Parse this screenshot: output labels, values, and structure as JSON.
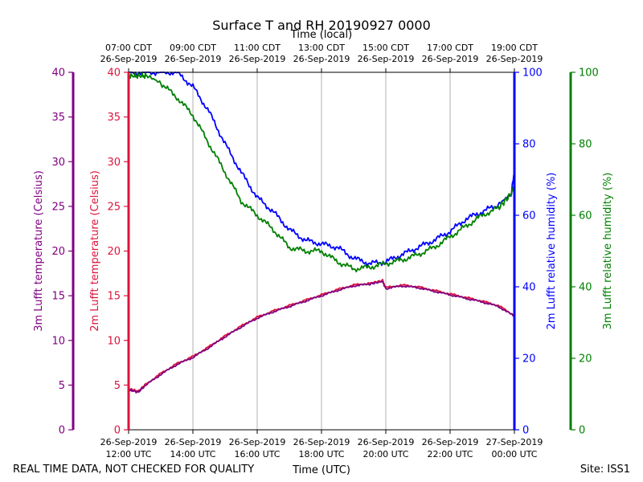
{
  "chart_data": {
    "type": "line",
    "title": "Surface T and RH 20190927 0000",
    "xlabel_bottom": "Time (UTC)",
    "xlabel_top": "Time (local)",
    "x_ticks_bottom": [
      [
        "26-Sep-2019",
        "12:00 UTC"
      ],
      [
        "26-Sep-2019",
        "14:00 UTC"
      ],
      [
        "26-Sep-2019",
        "16:00 UTC"
      ],
      [
        "26-Sep-2019",
        "18:00 UTC"
      ],
      [
        "26-Sep-2019",
        "20:00 UTC"
      ],
      [
        "26-Sep-2019",
        "22:00 UTC"
      ],
      [
        "27-Sep-2019",
        "00:00 UTC"
      ]
    ],
    "x_ticks_top": [
      [
        "07:00 CDT",
        "26-Sep-2019"
      ],
      [
        "09:00 CDT",
        "26-Sep-2019"
      ],
      [
        "11:00 CDT",
        "26-Sep-2019"
      ],
      [
        "13:00 CDT",
        "26-Sep-2019"
      ],
      [
        "15:00 CDT",
        "26-Sep-2019"
      ],
      [
        "17:00 CDT",
        "26-Sep-2019"
      ],
      [
        "19:00 CDT",
        "26-Sep-2019"
      ]
    ],
    "xlim_hours_utc": [
      12,
      24
    ],
    "grid": true,
    "axes": {
      "temp3m": {
        "label": "3m Lufft temperature (Celsius)",
        "ylim": [
          0,
          40
        ],
        "ticks": [
          0,
          5,
          10,
          15,
          20,
          25,
          30,
          35,
          40
        ],
        "color": "#800080"
      },
      "temp2m": {
        "label": "2m Lufft temperature (Celsius)",
        "ylim": [
          0,
          40
        ],
        "ticks": [
          0,
          5,
          10,
          15,
          20,
          25,
          30,
          35,
          40
        ],
        "color": "#dc143c"
      },
      "rh2m": {
        "label": "2m Lufft relative humidity (%)",
        "ylim": [
          0,
          100
        ],
        "ticks": [
          0,
          20,
          40,
          60,
          80,
          100
        ],
        "color": "#0000ff"
      },
      "rh3m": {
        "label": "3m Lufft relative humidity (%)",
        "ylim": [
          0,
          100
        ],
        "ticks": [
          0,
          20,
          40,
          60,
          80,
          100
        ],
        "color": "#008000"
      }
    },
    "series": [
      {
        "axis": "rh2m",
        "color": "#0000ff",
        "x": [
          12.0,
          12.5,
          13.0,
          13.5,
          14.0,
          14.5,
          15.0,
          15.5,
          16.0,
          16.5,
          17.0,
          17.5,
          18.0,
          18.5,
          19.0,
          19.5,
          20.0,
          20.5,
          21.0,
          21.5,
          22.0,
          22.5,
          23.0,
          23.5,
          23.9,
          24.0
        ],
        "y": [
          100,
          100,
          100,
          100,
          96,
          89,
          80,
          72,
          65,
          61,
          56,
          53,
          52,
          51,
          48,
          46.5,
          47,
          49,
          51,
          53,
          55.5,
          59,
          61,
          63,
          66,
          72
        ]
      },
      {
        "axis": "rh3m",
        "color": "#008000",
        "x": [
          12.0,
          12.3,
          12.6,
          13.0,
          13.5,
          14.0,
          14.5,
          15.0,
          15.5,
          16.0,
          16.5,
          17.0,
          17.5,
          18.0,
          18.5,
          19.0,
          19.5,
          20.0,
          20.5,
          21.0,
          21.5,
          22.0,
          22.5,
          23.0,
          23.5,
          23.9,
          24.0
        ],
        "y": [
          99,
          99,
          99,
          97,
          93,
          88,
          80,
          72,
          64,
          60,
          56,
          51,
          50,
          50,
          47,
          45,
          45.5,
          46.5,
          47.5,
          49,
          51,
          54,
          57,
          60,
          62,
          66,
          68
        ]
      },
      {
        "axis": "temp2m",
        "color": "#dc143c",
        "x": [
          12.0,
          12.1,
          12.3,
          12.5,
          13.0,
          13.5,
          14.0,
          14.5,
          15.0,
          15.5,
          16.0,
          16.5,
          17.0,
          17.5,
          18.0,
          18.5,
          19.0,
          19.5,
          19.9,
          20.0,
          20.5,
          21.0,
          21.5,
          22.0,
          22.5,
          23.0,
          23.5,
          24.0
        ],
        "y": [
          4.5,
          4.5,
          4.3,
          5.0,
          6.3,
          7.4,
          8.2,
          9.3,
          10.5,
          11.6,
          12.6,
          13.3,
          13.9,
          14.5,
          15.1,
          15.7,
          16.2,
          16.4,
          16.7,
          15.9,
          16.2,
          16.0,
          15.6,
          15.2,
          14.8,
          14.4,
          13.9,
          12.8
        ]
      },
      {
        "axis": "temp3m",
        "color": "#800080",
        "x": [
          12.0,
          12.1,
          12.3,
          12.5,
          13.0,
          13.5,
          14.0,
          14.5,
          15.0,
          15.5,
          16.0,
          16.5,
          17.0,
          17.5,
          18.0,
          18.5,
          19.0,
          19.5,
          19.9,
          20.0,
          20.5,
          21.0,
          21.5,
          22.0,
          22.5,
          23.0,
          23.5,
          24.0
        ],
        "y": [
          4.4,
          4.4,
          4.2,
          4.9,
          6.2,
          7.3,
          8.1,
          9.2,
          10.4,
          11.5,
          12.5,
          13.2,
          13.8,
          14.4,
          15.0,
          15.6,
          16.1,
          16.3,
          16.6,
          15.8,
          16.1,
          15.9,
          15.5,
          15.1,
          14.7,
          14.3,
          13.8,
          12.7
        ]
      }
    ],
    "footer_left": "REAL TIME DATA, NOT CHECKED FOR QUALITY",
    "footer_right": "Site: ISS1"
  }
}
